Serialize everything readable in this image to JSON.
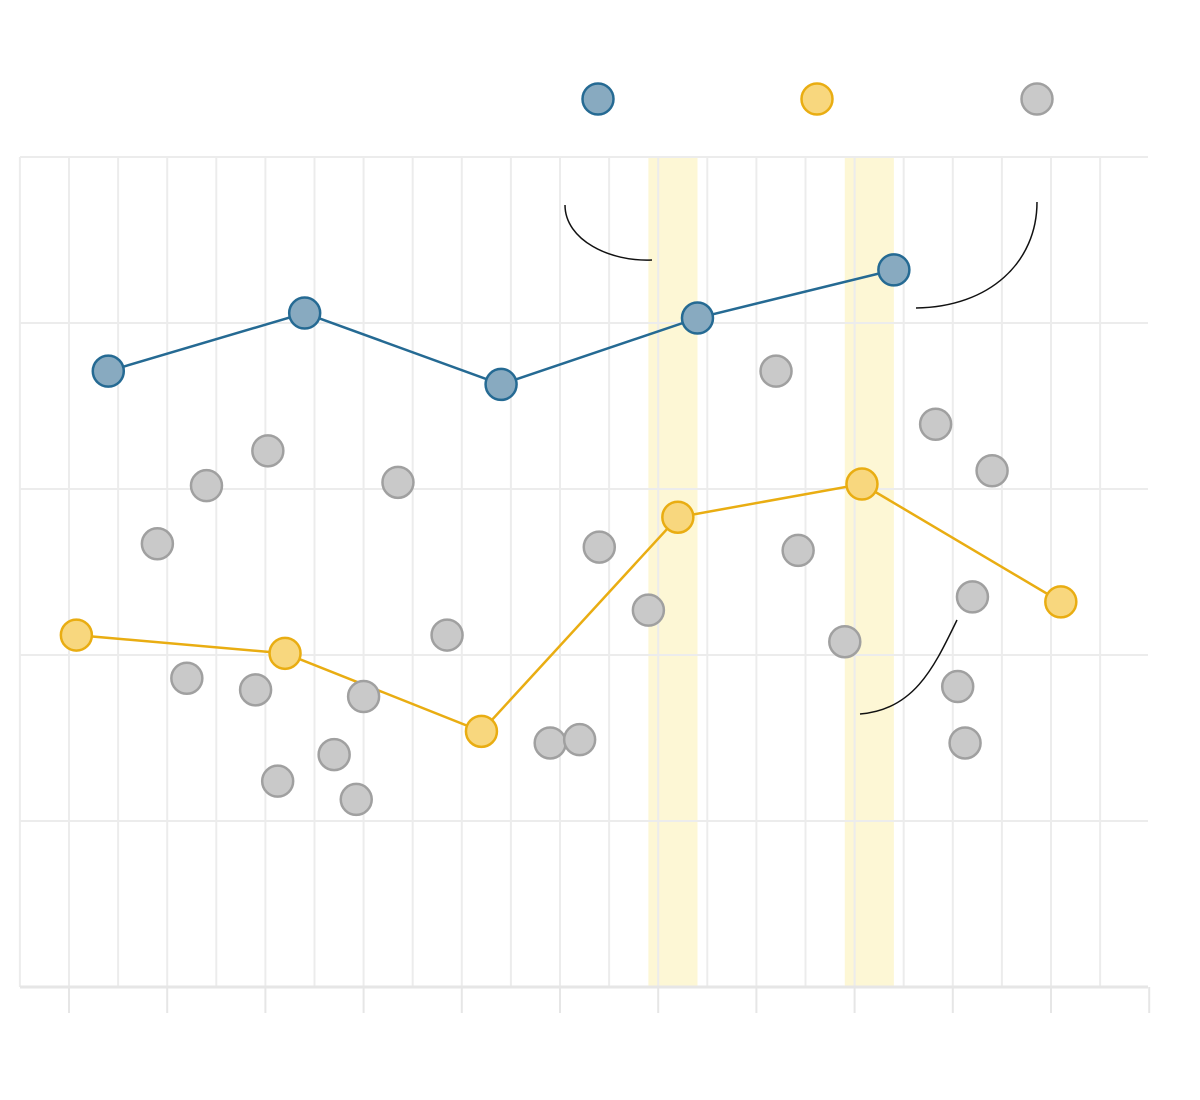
{
  "chart_data": {
    "type": "scatter",
    "title": "",
    "xlabel": "",
    "ylabel": "",
    "xlim": [
      -1,
      22
    ],
    "ylim": [
      0,
      5
    ],
    "x_ticks": [
      0,
      2,
      4,
      6,
      8,
      10,
      12,
      14,
      16,
      18,
      20,
      22
    ],
    "grid": true,
    "legend": "top-right",
    "colors": {
      "blue_fill": "#88aac0",
      "blue_stroke": "#256a93",
      "yellow_fill": "#f8d77e",
      "yellow_stroke": "#e9ad12",
      "grey_fill": "#c9c9c9",
      "grey_stroke": "#a0a0a0",
      "highlight": "#fbf1b3"
    },
    "highlight_bands": [
      [
        11.8,
        12.8
      ],
      [
        15.8,
        16.8
      ]
    ],
    "series": [
      {
        "key": "blue",
        "line": true,
        "points": [
          [
            0.8,
            3.71
          ],
          [
            4.8,
            4.06
          ],
          [
            8.8,
            3.63
          ],
          [
            12.8,
            4.03
          ],
          [
            16.8,
            4.32
          ]
        ]
      },
      {
        "key": "yellow",
        "line": true,
        "points": [
          [
            0.15,
            2.12
          ],
          [
            4.4,
            2.01
          ],
          [
            8.4,
            1.54
          ],
          [
            12.4,
            2.83
          ],
          [
            16.15,
            3.03
          ],
          [
            20.2,
            2.32
          ]
        ]
      },
      {
        "key": "grey",
        "line": false,
        "points": [
          [
            1.8,
            2.67
          ],
          [
            2.4,
            1.86
          ],
          [
            2.8,
            3.02
          ],
          [
            3.8,
            1.79
          ],
          [
            4.05,
            3.23
          ],
          [
            4.25,
            1.24
          ],
          [
            5.4,
            1.4
          ],
          [
            5.85,
            1.13
          ],
          [
            6.0,
            1.75
          ],
          [
            6.7,
            3.04
          ],
          [
            7.7,
            2.12
          ],
          [
            9.8,
            1.47
          ],
          [
            10.4,
            1.49
          ],
          [
            10.8,
            2.65
          ],
          [
            11.8,
            2.27
          ],
          [
            14.4,
            3.71
          ],
          [
            14.85,
            2.63
          ],
          [
            15.8,
            2.08
          ],
          [
            17.65,
            3.39
          ],
          [
            18.1,
            1.81
          ],
          [
            18.25,
            1.47
          ],
          [
            18.4,
            2.35
          ],
          [
            18.8,
            3.11
          ]
        ]
      }
    ]
  }
}
